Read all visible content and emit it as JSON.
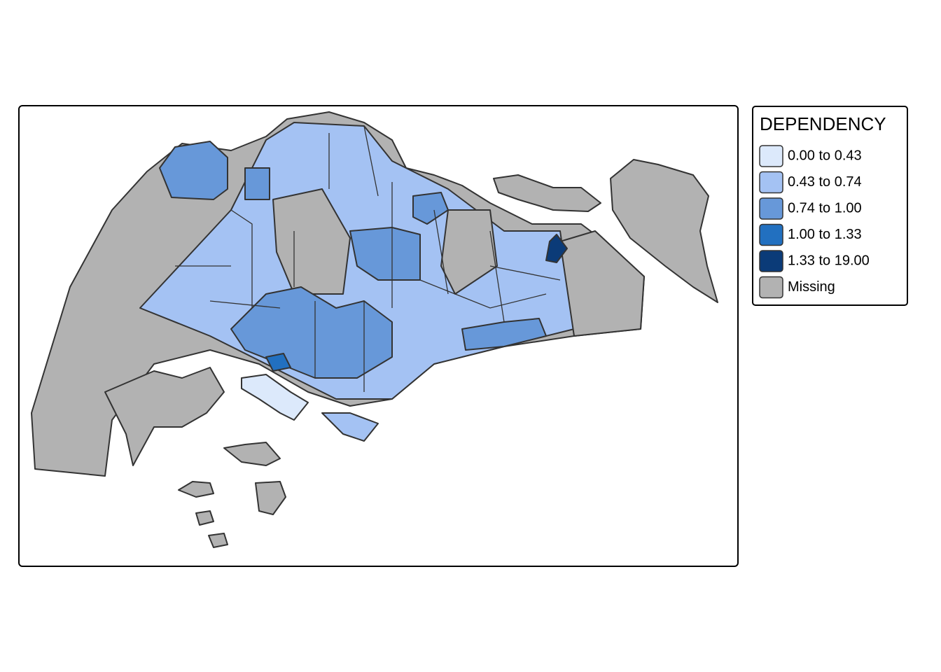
{
  "legend": {
    "title": "DEPENDENCY",
    "items": [
      {
        "label": "0.00 to 0.43",
        "color": "#dce9fb"
      },
      {
        "label": "0.43 to 0.74",
        "color": "#a4c2f3"
      },
      {
        "label": "0.74 to 1.00",
        "color": "#6798d9"
      },
      {
        "label": "1.00 to 1.33",
        "color": "#2270c0"
      },
      {
        "label": "1.33 to 19.00",
        "color": "#0b3b78"
      },
      {
        "label": "Missing",
        "color": "#b2b2b2"
      }
    ]
  }
}
